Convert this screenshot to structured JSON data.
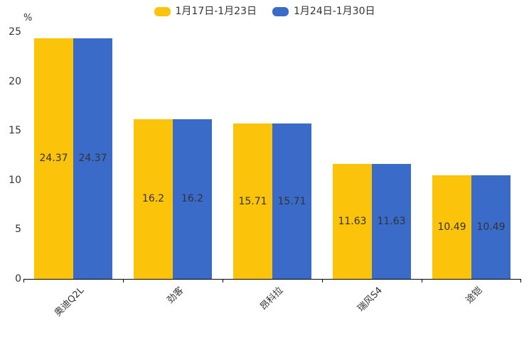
{
  "chart_data": {
    "type": "bar",
    "title": "",
    "ylabel_unit": "%",
    "categories": [
      "奥迪Q2L",
      "劲客",
      "昂科拉",
      "瑞风S4",
      "途铠"
    ],
    "series": [
      {
        "name": "1月17日-1月23日",
        "color": "#FCC30B",
        "values": [
          24.37,
          16.2,
          15.71,
          11.63,
          10.49
        ],
        "labels": [
          "24.37",
          "16.2",
          "15.71",
          "11.63",
          "10.49"
        ]
      },
      {
        "name": "1月24日-1月30日",
        "color": "#3A6BC9",
        "values": [
          24.37,
          16.2,
          15.71,
          11.63,
          10.49
        ],
        "labels": [
          "24.37",
          "16.2",
          "15.71",
          "11.63",
          "10.49"
        ]
      }
    ],
    "ylim": [
      0,
      25
    ],
    "yticks": [
      0,
      5,
      10,
      15,
      20,
      25
    ],
    "grid": false,
    "legend_position": "top",
    "value_label_position": "inside-center",
    "label_color": "#333333",
    "axis_color": "#000000"
  }
}
